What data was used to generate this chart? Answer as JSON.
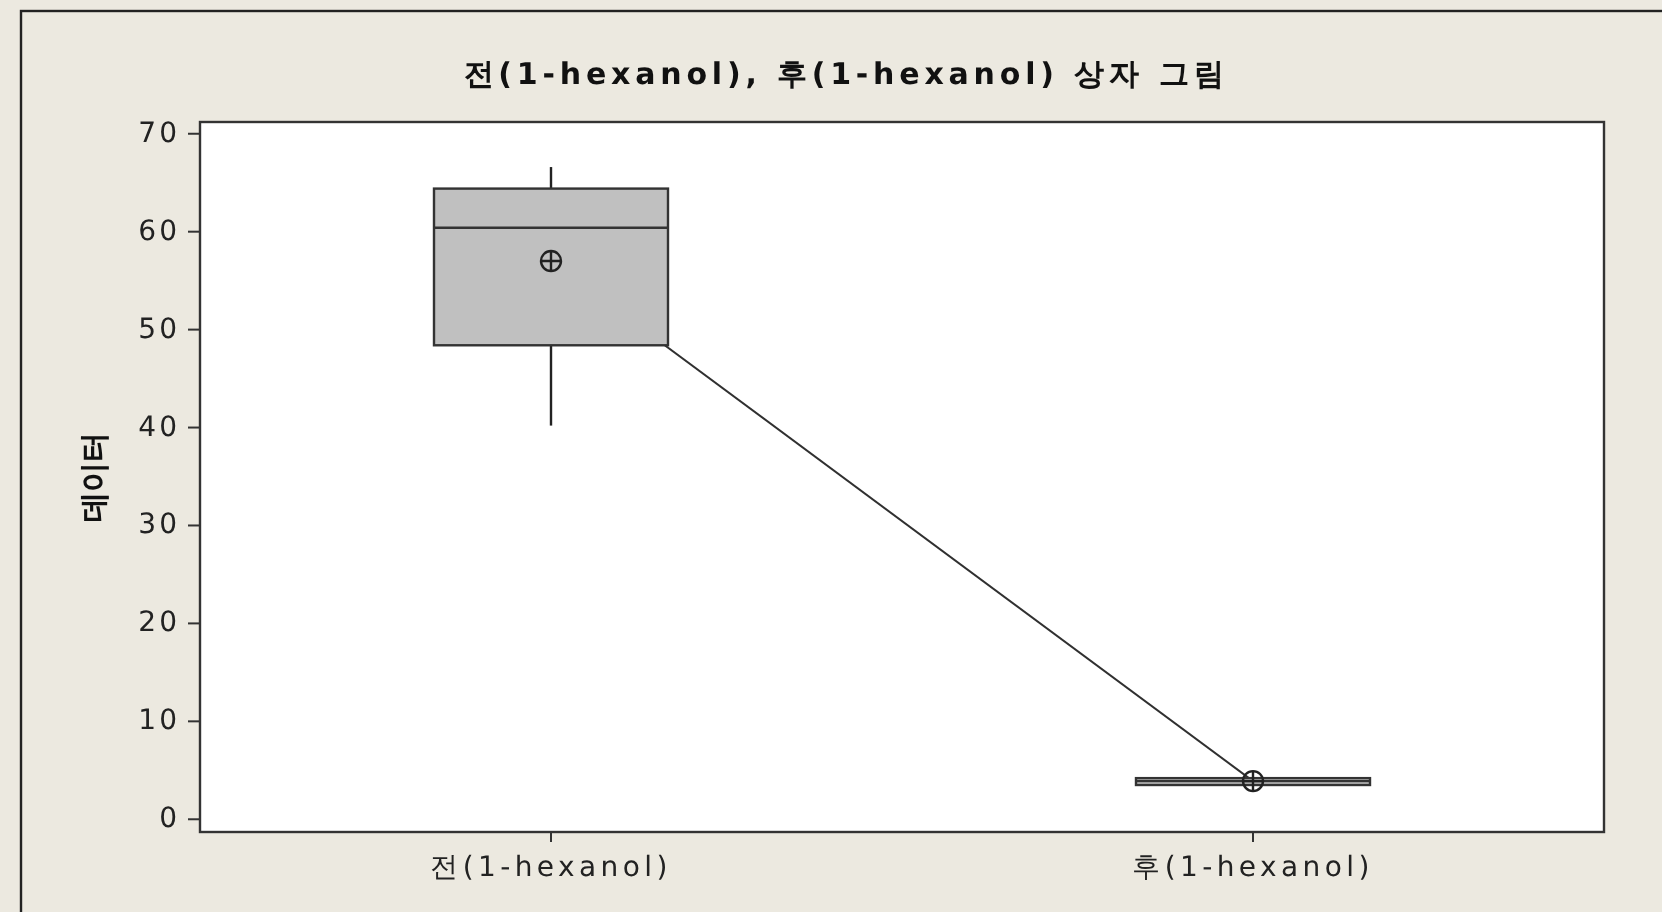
{
  "chart_data": {
    "type": "box",
    "title": "전(1-hexanol), 후(1-hexanol) 상자 그림",
    "ylabel": "데이터",
    "categories": [
      "전(1-hexanol)",
      "후(1-hexanol)"
    ],
    "ylim": [
      -1.3,
      71.2
    ],
    "yticks": [
      0,
      10,
      20,
      30,
      40,
      50,
      60,
      70
    ],
    "series": [
      {
        "color": "#c0c0c0",
        "boxes": [
          {
            "low": 40.2,
            "q1": 48.4,
            "median": 60.4,
            "q3": 64.4,
            "high": 66.6,
            "mean": 57.0
          },
          {
            "low": 3.4,
            "q1": 3.5,
            "median": 3.9,
            "q3": 4.2,
            "high": 4.3,
            "mean": 3.9
          }
        ]
      },
      {
        "type": "line",
        "color": "#303030",
        "values": [
          57.0,
          3.9
        ]
      }
    ]
  }
}
